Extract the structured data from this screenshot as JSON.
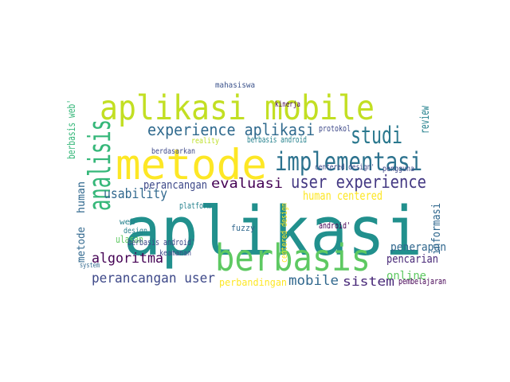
{
  "chart_data": {
    "type": "wordcloud",
    "background": "#ffffff",
    "words": [
      {
        "text": "aplikasi",
        "weight": 85,
        "color": "#21908d"
      },
      {
        "text": "aplikasi mobile",
        "weight": 43,
        "color": "#c2df23"
      },
      {
        "text": "metode",
        "weight": 53,
        "color": "#fde725"
      },
      {
        "text": "berbasis",
        "weight": 46,
        "color": "#5ec962"
      },
      {
        "text": "implementasi",
        "weight": 32,
        "color": "#2c728e"
      },
      {
        "text": "studi",
        "weight": 29,
        "color": "#2a788e"
      },
      {
        "text": "analisis",
        "weight": 38,
        "color": "#35b779"
      },
      {
        "text": "experience aplikasi",
        "weight": 20,
        "color": "#306a8e"
      },
      {
        "text": "user experience",
        "weight": 22,
        "color": "#443983"
      },
      {
        "text": "usability",
        "weight": 17,
        "color": "#31688e"
      },
      {
        "text": "perancangan",
        "weight": 14,
        "color": "#3e4989"
      },
      {
        "text": "evaluasi",
        "weight": 17,
        "color": "#440154"
      },
      {
        "text": "human centered",
        "weight": 15,
        "color": "#fde725"
      },
      {
        "text": "algoritma",
        "weight": 17,
        "color": "#440154"
      },
      {
        "text": "perancangan user",
        "weight": 17,
        "color": "#3e4989"
      },
      {
        "text": "mobile",
        "weight": 17,
        "color": "#31688e"
      },
      {
        "text": "sistem",
        "weight": 16,
        "color": "#482878"
      },
      {
        "text": "online",
        "weight": 14,
        "color": "#5ec962"
      },
      {
        "text": "pembelajaran",
        "weight": 11,
        "color": "#440154"
      },
      {
        "text": "perbandingan",
        "weight": 12,
        "color": "#fde725"
      },
      {
        "text": "penerapan",
        "weight": 14,
        "color": "#31688e"
      },
      {
        "text": "pencarian",
        "weight": 14,
        "color": "#482878"
      },
      {
        "text": "informasi",
        "weight": 14,
        "color": "#31688e"
      },
      {
        "text": "review",
        "weight": 15,
        "color": "#26828e"
      },
      {
        "text": "berbasis web'",
        "weight": 13,
        "color": "#35b779"
      },
      {
        "text": "human",
        "weight": 13,
        "color": "#31688e"
      },
      {
        "text": "metode",
        "weight": 13,
        "color": "#31688e"
      },
      {
        "text": "protokol",
        "weight": 11,
        "color": "#3e4989"
      },
      {
        "text": "kinerja",
        "weight": 10,
        "color": "#440154"
      },
      {
        "text": "mahasiswa",
        "weight": 10,
        "color": "#3b528b"
      },
      {
        "text": "berdasarkan",
        "weight": 10,
        "color": "#3e4989"
      },
      {
        "text": "reality",
        "weight": 10,
        "color": "#bddf26"
      },
      {
        "text": "berbasis android",
        "weight": 11,
        "color": "#26828e"
      },
      {
        "text": "centered design'",
        "weight": 10,
        "color": "#3e4989"
      },
      {
        "text": "platform",
        "weight": 11,
        "color": "#26828e"
      },
      {
        "text": "fuzzy",
        "weight": 11,
        "color": "#31688e"
      },
      {
        "text": "web",
        "weight": 10,
        "color": "#26828e"
      },
      {
        "text": "design",
        "weight": 10,
        "color": "#26828e"
      },
      {
        "text": "ulasan",
        "weight": 12,
        "color": "#5ec962"
      },
      {
        "text": "berbasis android'",
        "weight": 11,
        "color": "#3e4989"
      },
      {
        "text": "keamanan",
        "weight": 10,
        "color": "#3e4989"
      },
      {
        "text": "system",
        "weight": 9,
        "color": "#31688e"
      },
      {
        "text": "centered design",
        "weight": 11,
        "color": "#fde725"
      },
      {
        "text": "android'",
        "weight": 11,
        "color": "#440154"
      },
      {
        "text": "pengguna",
        "weight": 10,
        "color": "#3e4989"
      }
    ]
  }
}
